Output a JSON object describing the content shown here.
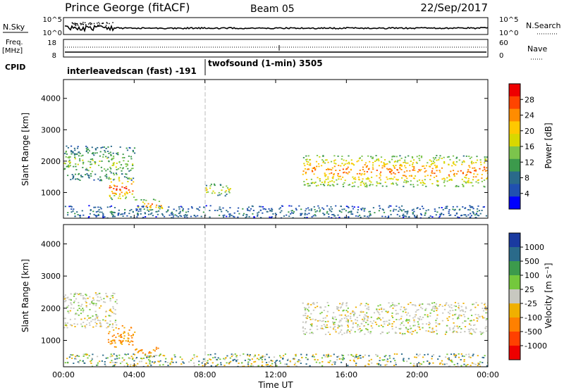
{
  "header": {
    "title": "Prince George (fitACF)",
    "beam": "Beam 05",
    "date": "22/Sep/2017"
  },
  "status_panels": {
    "nsky_label": "N.Sky",
    "nsky_ticks": [
      "10^5",
      "10^0"
    ],
    "nsearch_label": "N.Search",
    "nsearch_ticks": [
      "10^5",
      "10^0"
    ],
    "freq_label": "Freq.",
    "freq_unit": "[MHz]",
    "freq_ticks": [
      "18",
      "8"
    ],
    "nave_label": "Nave",
    "nave_ticks": [
      "60",
      "0"
    ],
    "cpid_label": "CPID",
    "cpid_segments": [
      {
        "label": "interleavedscan (fast) -191",
        "start_hour": 0,
        "end_hour": 8
      },
      {
        "label": "twofsound (1-min) 3505",
        "start_hour": 8,
        "end_hour": 24
      }
    ]
  },
  "x_axis": {
    "ticks": [
      "00:00",
      "04:00",
      "08:00",
      "12:00",
      "16:00",
      "20:00",
      "00:00"
    ],
    "label": "Time UT"
  },
  "colorbars": {
    "power": {
      "label": "Power [dB]",
      "ticks": [
        "28",
        "24",
        "20",
        "16",
        "12",
        "8",
        "4"
      ],
      "colors": [
        "#ee0000",
        "#ff4400",
        "#ff8c00",
        "#ffc800",
        "#d8d800",
        "#7cc44c",
        "#3c9a4c",
        "#2a6a8a",
        "#2050b0",
        "#0000ff"
      ]
    },
    "velocity": {
      "label": "Velocity [m s⁻¹]",
      "ticks": [
        "1000",
        "500",
        "100",
        "25",
        "-25",
        "-100",
        "-500",
        "-1000"
      ],
      "colors": [
        "#1a3aa0",
        "#2a6a8a",
        "#3c9a4c",
        "#74c83c",
        "#c8c8c0",
        "#f0b000",
        "#ff8000",
        "#ff4000",
        "#ee0000"
      ]
    }
  },
  "chart_data": [
    {
      "type": "heatmap",
      "panel": "power",
      "ylabel": "Slant Range [km]",
      "xlabel": "Time UT",
      "xlim_hours": [
        0,
        24
      ],
      "ylim_km": [
        180,
        4600
      ],
      "yticks": [
        "1000",
        "2000",
        "3000",
        "4000"
      ],
      "features": [
        {
          "name": "E-region band",
          "t": [
            0,
            24
          ],
          "r": [
            200,
            600
          ],
          "power_db": 8
        },
        {
          "name": "early F echoes",
          "t": [
            0,
            4
          ],
          "r": [
            1400,
            2500
          ],
          "power_db": 14
        },
        {
          "name": "patch 03:00",
          "t": [
            2.5,
            4
          ],
          "r": [
            800,
            1500
          ],
          "power_db": 26
        },
        {
          "name": "patch 04:30",
          "t": [
            4,
            5.6
          ],
          "r": [
            450,
            800
          ],
          "power_db": 24
        },
        {
          "name": "patch 09:00",
          "t": [
            8,
            9.5
          ],
          "r": [
            900,
            1300
          ],
          "power_db": 18
        },
        {
          "name": "evening F band",
          "t": [
            13.5,
            24
          ],
          "r": [
            1200,
            2200
          ],
          "power_db": 24
        }
      ]
    },
    {
      "type": "heatmap",
      "panel": "velocity",
      "ylabel": "Slant Range [km]",
      "xlabel": "Time UT",
      "xlim_hours": [
        0,
        24
      ],
      "ylim_km": [
        180,
        4600
      ],
      "yticks": [
        "1000",
        "2000",
        "3000",
        "4000"
      ],
      "features": [
        {
          "name": "early F echoes",
          "t": [
            0,
            3
          ],
          "r": [
            1400,
            2500
          ],
          "velocity_ms": 0
        },
        {
          "name": "patch 03:00",
          "t": [
            2.5,
            4
          ],
          "r": [
            800,
            1500
          ],
          "velocity_ms": -100
        },
        {
          "name": "patch 04:30",
          "t": [
            4,
            5.6
          ],
          "r": [
            450,
            800
          ],
          "velocity_ms": -100
        },
        {
          "name": "evening F band",
          "t": [
            13.5,
            24
          ],
          "r": [
            1200,
            2200
          ],
          "velocity_ms": 0
        },
        {
          "name": "E-region band",
          "t": [
            0,
            24
          ],
          "r": [
            200,
            600
          ],
          "velocity_ms": 50
        }
      ]
    }
  ]
}
